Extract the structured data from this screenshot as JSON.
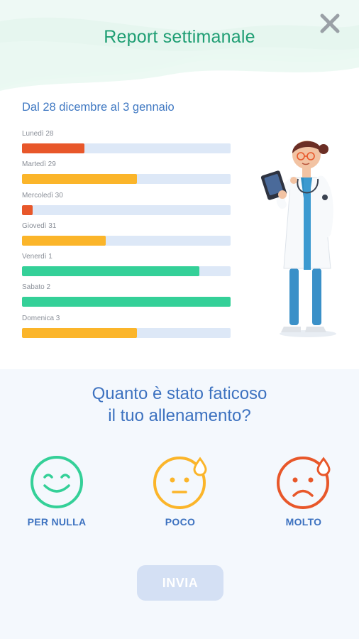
{
  "header": {
    "title": "Report settimanale",
    "close_icon": "close-icon"
  },
  "report": {
    "range": "Dal 28 dicembre al 3 gennaio",
    "days": [
      {
        "label": "Lunedì 28",
        "value": 0.3,
        "color": "#e8572a"
      },
      {
        "label": "Martedì 29",
        "value": 0.55,
        "color": "#fbb52a"
      },
      {
        "label": "Mercoledì 30",
        "value": 0.05,
        "color": "#e8572a"
      },
      {
        "label": "Giovedì 31",
        "value": 0.4,
        "color": "#fbb52a"
      },
      {
        "label": "Venerdì 1",
        "value": 0.85,
        "color": "#34d098"
      },
      {
        "label": "Sabato 2",
        "value": 1.0,
        "color": "#34d098"
      },
      {
        "label": "Domenica 3",
        "value": 0.55,
        "color": "#fbb52a"
      }
    ]
  },
  "survey": {
    "question_line1": "Quanto è stato faticoso",
    "question_line2": "il tuo allenamento?",
    "options": [
      {
        "label": "PER NULLA",
        "icon": "happy-face-icon",
        "color": "#34d098"
      },
      {
        "label": "POCO",
        "icon": "neutral-face-icon",
        "color": "#fbb52a"
      },
      {
        "label": "MOLTO",
        "icon": "sad-face-icon",
        "color": "#e8572a"
      }
    ],
    "send_label": "INVIA"
  }
}
